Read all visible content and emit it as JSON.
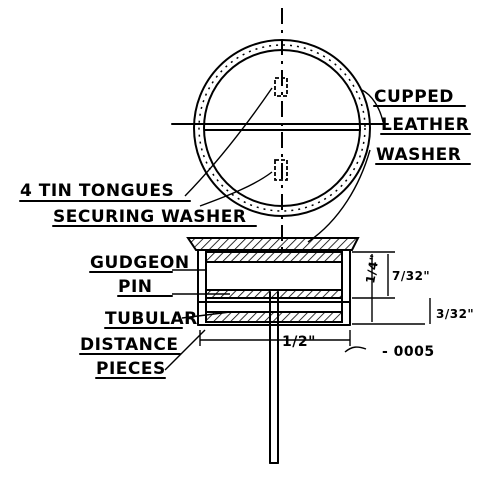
{
  "labels": {
    "cupped": "CUPPED",
    "leather": "LEATHER",
    "washer": "WASHER",
    "tin_tongues": "4 TIN TONGUES",
    "securing_washer": "SECURING WASHER",
    "gudgeon": "GUDGEON",
    "pin": "PIN",
    "tubular": "TUBULAR",
    "distance": "DISTANCE",
    "pieces": "PIECES"
  },
  "dimensions": {
    "quarter": "1/4\"",
    "seven_32": "7/32\"",
    "three_32": "3/32\"",
    "half": "1/2\"",
    "clearance": "- 0005"
  }
}
